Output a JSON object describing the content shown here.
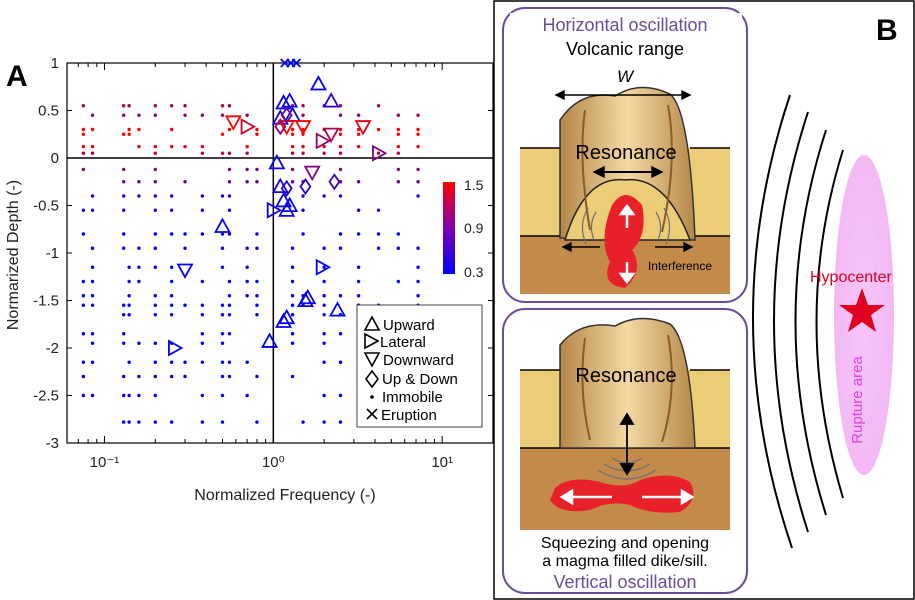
{
  "panels": {
    "a": "A",
    "b": "B"
  },
  "chart_data": {
    "type": "scatter",
    "xlabel": "Normalized Frequency (-)",
    "ylabel": "Normarized Depth (-)",
    "xscale": "log",
    "xlim": [
      0.06,
      20
    ],
    "ylim": [
      -3,
      1
    ],
    "xticks": [
      {
        "v": 0.1,
        "label": "10⁻¹"
      },
      {
        "v": 1,
        "label": "10⁰"
      },
      {
        "v": 10,
        "label": "10¹"
      }
    ],
    "yticks": [
      1,
      0.5,
      0,
      -0.5,
      -1,
      -1.5,
      -2,
      -2.5,
      -3
    ],
    "reference_lines": {
      "x": 1,
      "y": 0
    },
    "colorbar": {
      "ticks": [
        "1.5",
        "0.9",
        "0.3"
      ],
      "colors": [
        "#ff0000",
        "#7f00b0",
        "#0000ff"
      ]
    },
    "legend": {
      "position": "lower-right",
      "entries": [
        {
          "symbol": "triangle-up",
          "label": "Upward"
        },
        {
          "symbol": "triangle-right",
          "label": "Lateral"
        },
        {
          "symbol": "triangle-down",
          "label": "Downward"
        },
        {
          "symbol": "diamond",
          "label": "Up & Down"
        },
        {
          "symbol": "dot",
          "label": "Immobile"
        },
        {
          "symbol": "x",
          "label": "Eruption"
        }
      ]
    },
    "series": [
      {
        "name": "Upward",
        "symbol": "triangle-up",
        "points": [
          {
            "x": 1.85,
            "y": 0.78,
            "c": 0.3
          },
          {
            "x": 1.15,
            "y": 0.58,
            "c": 0.35
          },
          {
            "x": 1.25,
            "y": 0.6,
            "c": 0.35
          },
          {
            "x": 1.3,
            "y": 0.45,
            "c": 0.35
          },
          {
            "x": 1.1,
            "y": 0.42,
            "c": 0.4
          },
          {
            "x": 2.2,
            "y": 0.6,
            "c": 0.45
          },
          {
            "x": 1.05,
            "y": -0.05,
            "c": 0.3
          },
          {
            "x": 1.1,
            "y": -0.3,
            "c": 0.35
          },
          {
            "x": 1.15,
            "y": -0.45,
            "c": 0.35
          },
          {
            "x": 1.25,
            "y": -0.5,
            "c": 0.3
          },
          {
            "x": 1.2,
            "y": -0.55,
            "c": 0.35
          },
          {
            "x": 0.5,
            "y": -0.72,
            "c": 0.3
          },
          {
            "x": 1.55,
            "y": -1.5,
            "c": 0.35
          },
          {
            "x": 1.6,
            "y": -1.47,
            "c": 0.3
          },
          {
            "x": 2.4,
            "y": -1.6,
            "c": 0.3
          },
          {
            "x": 1.15,
            "y": -1.72,
            "c": 0.35
          },
          {
            "x": 1.2,
            "y": -1.68,
            "c": 0.3
          },
          {
            "x": 0.95,
            "y": -1.93,
            "c": 0.3
          }
        ]
      },
      {
        "name": "Lateral",
        "symbol": "triangle-right",
        "points": [
          {
            "x": 0.7,
            "y": 0.33,
            "c": 1.3
          },
          {
            "x": 1.95,
            "y": 0.18,
            "c": 1.0
          },
          {
            "x": 4.2,
            "y": 0.05,
            "c": 0.9
          },
          {
            "x": 1.0,
            "y": -0.55,
            "c": 0.35
          },
          {
            "x": 1.95,
            "y": -1.15,
            "c": 0.3
          },
          {
            "x": 0.26,
            "y": -2.0,
            "c": 0.3
          }
        ]
      },
      {
        "name": "Downward",
        "symbol": "triangle-down",
        "points": [
          {
            "x": 0.58,
            "y": 0.38,
            "c": 1.5
          },
          {
            "x": 1.2,
            "y": 0.33,
            "c": 1.5
          },
          {
            "x": 1.5,
            "y": 0.33,
            "c": 1.5
          },
          {
            "x": 3.4,
            "y": 0.33,
            "c": 1.4
          },
          {
            "x": 2.2,
            "y": 0.25,
            "c": 1.1
          },
          {
            "x": 1.7,
            "y": -0.15,
            "c": 0.9
          },
          {
            "x": 0.3,
            "y": -1.18,
            "c": 0.3
          }
        ]
      },
      {
        "name": "Up & Down",
        "symbol": "diamond",
        "points": [
          {
            "x": 1.2,
            "y": 0.45,
            "c": 0.9
          },
          {
            "x": 1.1,
            "y": 0.33,
            "c": 1.0
          },
          {
            "x": 2.3,
            "y": -0.25,
            "c": 0.6
          },
          {
            "x": 1.2,
            "y": -0.32,
            "c": 0.5
          },
          {
            "x": 1.55,
            "y": -0.3,
            "c": 0.5
          }
        ]
      },
      {
        "name": "Eruption",
        "symbol": "x",
        "points": [
          {
            "x": 1.17,
            "y": 1.0,
            "c": 0.3
          },
          {
            "x": 1.27,
            "y": 1.0,
            "c": 0.3
          },
          {
            "x": 1.37,
            "y": 1.0,
            "c": 0.3
          }
        ]
      }
    ],
    "immobile_columns": [
      0.075,
      0.085,
      0.13,
      0.14,
      0.16,
      0.2,
      0.25,
      0.3,
      0.38,
      0.5,
      0.55,
      0.7,
      0.8,
      1.3,
      1.5,
      2.0,
      2.5,
      3.2,
      4.2,
      5.5,
      7.2
    ],
    "immobile_depths": [
      {
        "y": 0.55,
        "c": 1.1
      },
      {
        "y": 0.45,
        "c": 1.0
      },
      {
        "y": 0.3,
        "c": 1.5
      },
      {
        "y": 0.25,
        "c": 1.5
      },
      {
        "y": 0.12,
        "c": 1.4
      },
      {
        "y": 0.05,
        "c": 1.2
      },
      {
        "y": -0.12,
        "c": 0.9
      },
      {
        "y": -0.25,
        "c": 0.75
      },
      {
        "y": -0.4,
        "c": 0.5
      },
      {
        "y": -0.55,
        "c": 0.4
      },
      {
        "y": -0.8,
        "c": 0.3
      },
      {
        "y": -0.95,
        "c": 0.3
      },
      {
        "y": -1.15,
        "c": 0.3
      },
      {
        "y": -1.3,
        "c": 0.3
      },
      {
        "y": -1.45,
        "c": 0.3
      },
      {
        "y": -1.55,
        "c": 0.3
      },
      {
        "y": -1.65,
        "c": 0.3
      },
      {
        "y": -1.85,
        "c": 0.3
      },
      {
        "y": -1.95,
        "c": 0.3
      },
      {
        "y": -2.15,
        "c": 0.3
      },
      {
        "y": -2.3,
        "c": 0.3
      },
      {
        "y": -2.5,
        "c": 0.3
      },
      {
        "y": -2.78,
        "c": 0.3
      }
    ]
  },
  "diagram": {
    "top_box": {
      "title": "Horizontal oscillation",
      "subtitle": "Volcanic range",
      "width_label": "W",
      "resonance_label": "Resonance",
      "interference_label": "Interference"
    },
    "bottom_box": {
      "resonance_label": "Resonance",
      "caption_line1": "Squeezing and opening",
      "caption_line2": "a magma filled dike/sill.",
      "title": "Vertical oscillation"
    },
    "hypocenter_label": "Hypocenter",
    "rupture_label": "Rupture area",
    "colors": {
      "frame": "#6b4c9a",
      "magma": "#e8202a",
      "ground_light": "#eccc77",
      "ground_dark": "#c38a4a",
      "rupture": "#f3b8f5",
      "hypocenter": "#e00020"
    }
  }
}
